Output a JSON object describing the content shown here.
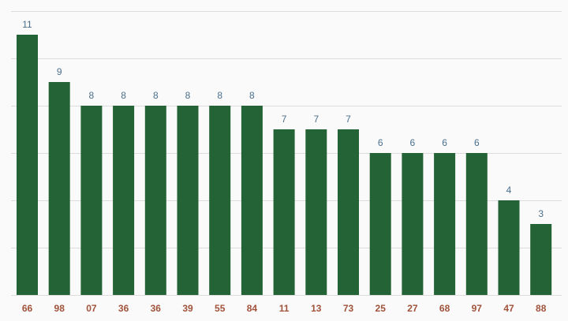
{
  "chart_data": {
    "type": "bar",
    "categories": [
      "66",
      "98",
      "07",
      "36",
      "36",
      "39",
      "55",
      "84",
      "11",
      "13",
      "73",
      "25",
      "27",
      "68",
      "97",
      "47",
      "88"
    ],
    "values": [
      11,
      9,
      8,
      8,
      8,
      8,
      8,
      8,
      7,
      7,
      7,
      6,
      6,
      6,
      6,
      4,
      3
    ],
    "ylim": [
      0,
      12
    ],
    "grid": true,
    "bar_color": "#246335",
    "value_label_color": "#4a6f8c",
    "category_label_color": "#a0533a"
  }
}
